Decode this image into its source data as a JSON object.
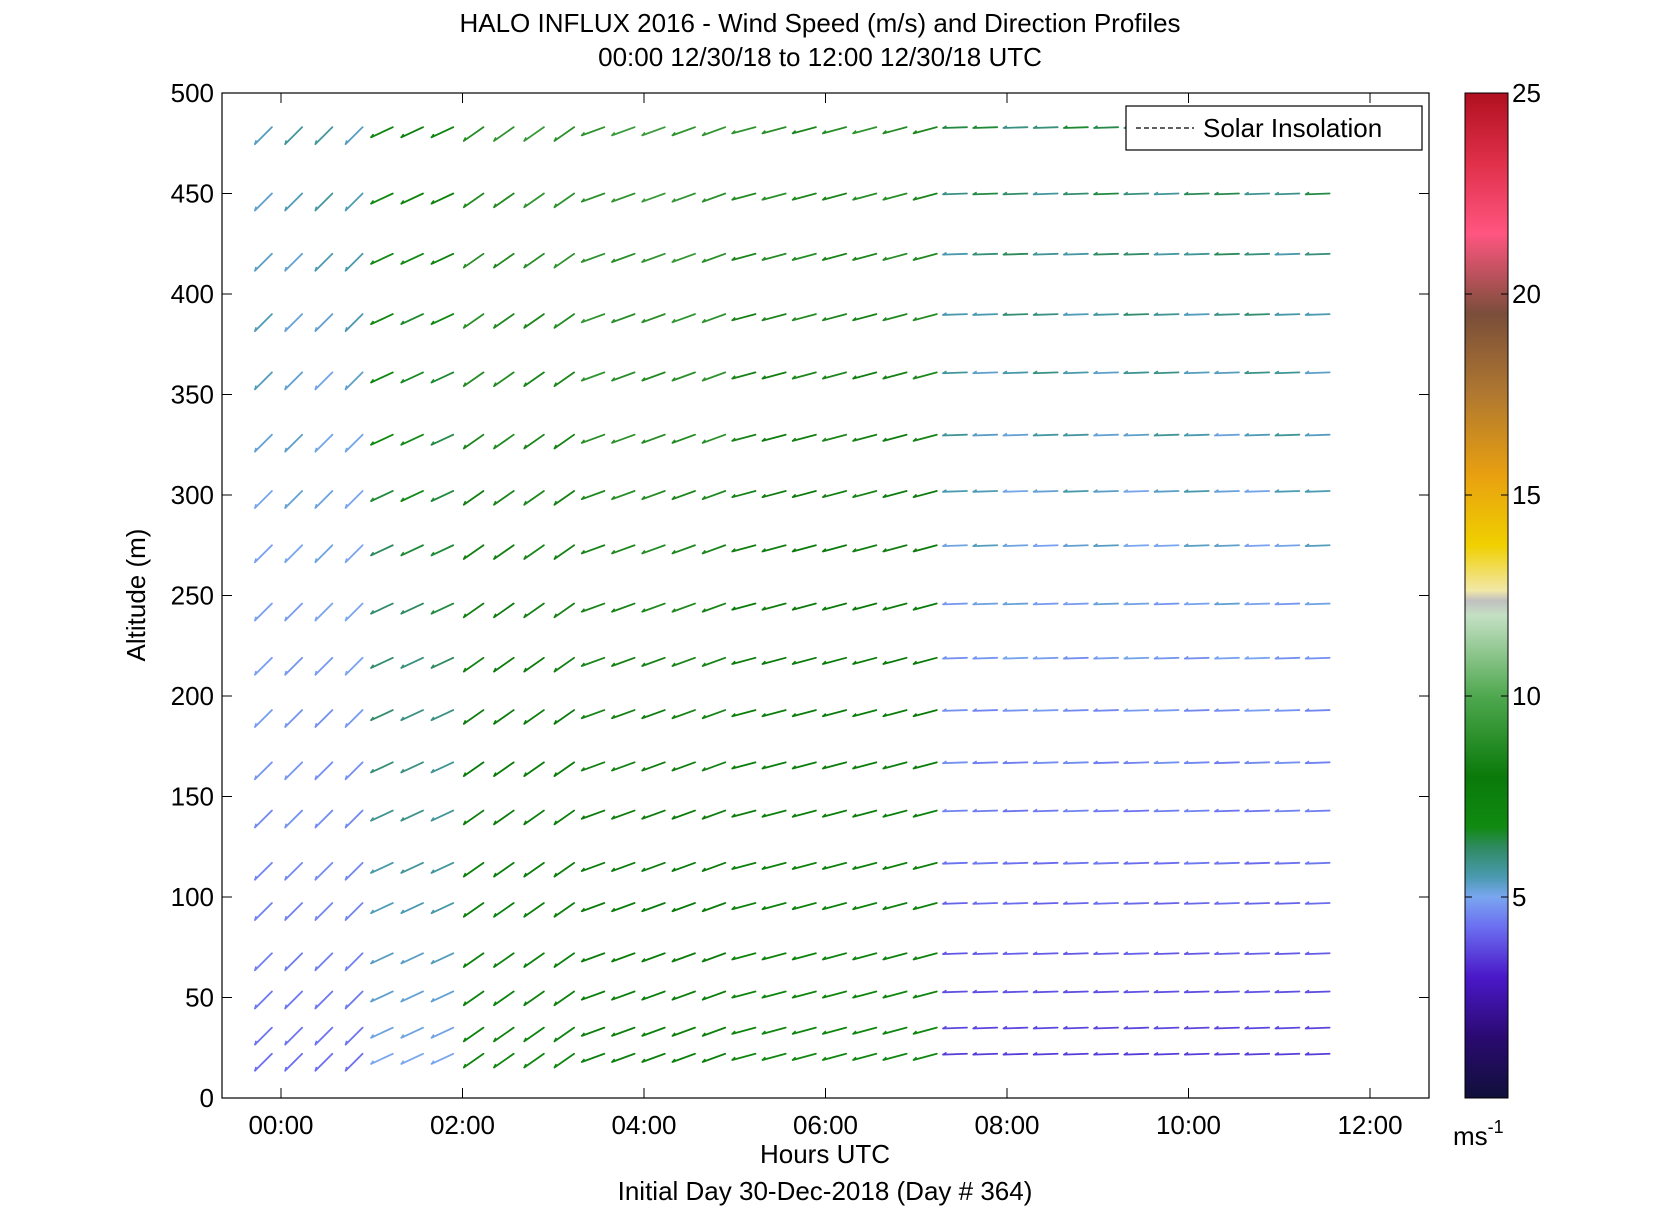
{
  "chart_data": {
    "type": "wind-barb",
    "title": "HALO INFLUX 2016 - Wind Speed (m/s) and Direction Profiles",
    "subtitle": "00:00 12/30/18 to 12:00 12/30/18  UTC",
    "xlabel": "Hours UTC",
    "ylabel": "Altitude (m)",
    "footer": "Initial Day 30-Dec-2018 (Day # 364)",
    "xlim": [
      -0.65,
      12.65
    ],
    "ylim": [
      0,
      500
    ],
    "x_ticks": [
      0,
      2,
      4,
      6,
      8,
      10,
      12
    ],
    "x_tick_labels": [
      "00:00",
      "02:00",
      "04:00",
      "06:00",
      "08:00",
      "10:00",
      "12:00"
    ],
    "y_ticks": [
      0,
      50,
      100,
      150,
      200,
      250,
      300,
      350,
      400,
      450,
      500
    ],
    "y_tick_labels": [
      "0",
      "50",
      "100",
      "150",
      "200",
      "250",
      "300",
      "350",
      "400",
      "450",
      "500"
    ],
    "legend": {
      "entries": [
        "Solar Insolation"
      ],
      "placement": "top-right"
    },
    "colorbar": {
      "range": [
        0,
        25
      ],
      "ticks": [
        5,
        10,
        15,
        20,
        25
      ],
      "tick_labels": [
        "5",
        "10",
        "15",
        "20",
        "25"
      ],
      "unit_label": "ms",
      "unit_exponent": "-1"
    },
    "altitudes": [
      22,
      35,
      53,
      72,
      97,
      117,
      143,
      167,
      193,
      219,
      246,
      275,
      302,
      330,
      361,
      390,
      420,
      450,
      483
    ],
    "time_start_hours": -0.1,
    "time_step_hours": 0.333,
    "time_count": 36,
    "segments": [
      {
        "t_start": -0.1,
        "t_end": 1.0,
        "speed": 4.2,
        "dir": 225,
        "speed_rise_with_alt": 0.15
      },
      {
        "t_start": 1.0,
        "t_end": 2.0,
        "speed": 5.0,
        "dir": 245,
        "speed_rise_with_alt": 0.25
      },
      {
        "t_start": 2.0,
        "t_end": 3.5,
        "speed": 7.2,
        "dir": 235,
        "speed_rise_with_alt": 0.2
      },
      {
        "t_start": 3.5,
        "t_end": 5.0,
        "speed": 7.5,
        "dir": 250,
        "speed_rise_with_alt": 0.2
      },
      {
        "t_start": 5.0,
        "t_end": 7.5,
        "speed": 7.0,
        "dir": 255,
        "speed_rise_with_alt": 0.2
      },
      {
        "t_start": 7.5,
        "t_end": 11.8,
        "speed": 3.5,
        "dir": 268,
        "speed_rise_with_alt": 0.3
      }
    ]
  }
}
